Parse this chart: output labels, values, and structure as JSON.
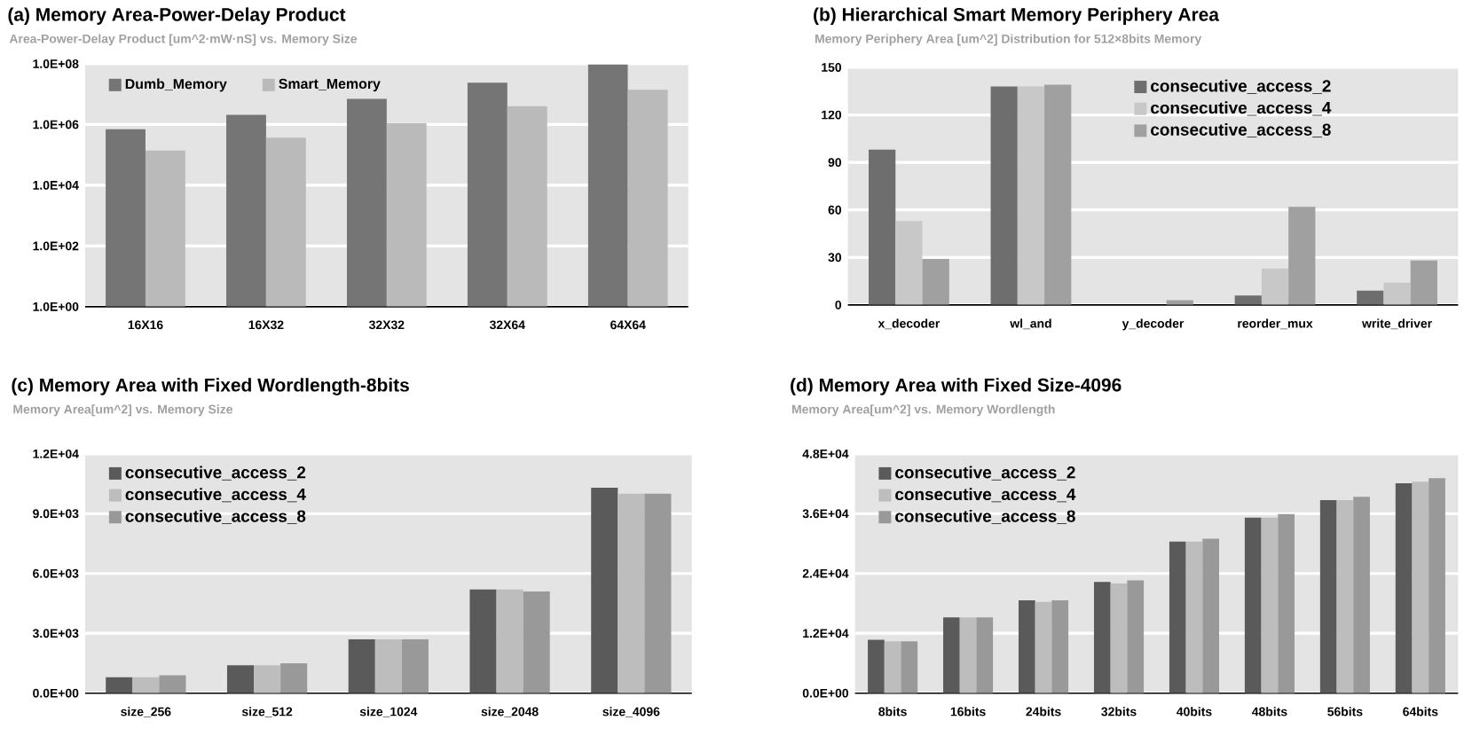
{
  "chart_data": [
    {
      "type": "bar",
      "title": "(a) Memory Area-Power-Delay Product",
      "subtitle": "Area-Power-Delay Product [um^2·mW·nS] vs. Memory Size",
      "categories": [
        "16X16",
        "16X32",
        "32X32",
        "32X64",
        "64X64"
      ],
      "series": [
        {
          "name": "Dumb_Memory",
          "color": "#757575",
          "values": [
            700000,
            2100000,
            7000000,
            24000000,
            95000000
          ]
        },
        {
          "name": "Smart_Memory",
          "color": "#bababa",
          "values": [
            140000,
            370000,
            1100000,
            4000000,
            14000000
          ]
        }
      ],
      "log": "y",
      "ylim": [
        1,
        100000000
      ],
      "yticks": [
        {
          "value": 1,
          "label": "1.0E+00"
        },
        {
          "value": 100,
          "label": "1.0E+02"
        },
        {
          "value": 10000,
          "label": "1.0E+04"
        },
        {
          "value": 1000000,
          "label": "1.0E+06"
        },
        {
          "value": 100000000,
          "label": "1.0E+08"
        }
      ],
      "grid": "y",
      "legend": "top"
    },
    {
      "type": "bar",
      "title": "(b) Hierarchical Smart Memory Periphery Area",
      "subtitle": "Memory  Periphery Area [um^2] Distribution for 512×8bits Memory",
      "categories": [
        "x_decoder",
        "wl_and",
        "y_decoder",
        "reorder_mux",
        "write_driver"
      ],
      "series": [
        {
          "name": "consecutive_access_2",
          "color": "#6e6e6e",
          "values": [
            98,
            138,
            0,
            6,
            9
          ]
        },
        {
          "name": "consecutive_access_4",
          "color": "#c8c8c8",
          "values": [
            53,
            138,
            0,
            23,
            14
          ]
        },
        {
          "name": "consecutive_access_8",
          "color": "#a0a0a0",
          "values": [
            29,
            139,
            3,
            62,
            28
          ]
        }
      ],
      "ylim": [
        0,
        150
      ],
      "yticks": [
        0,
        30,
        60,
        90,
        120,
        150
      ],
      "grid": "y",
      "legend": "top right"
    },
    {
      "type": "bar",
      "title": "(c) Memory Area with Fixed Wordlength-8bits",
      "subtitle": "Memory Area[um^2] vs. Memory Size",
      "categories": [
        "size_256",
        "size_512",
        "size_1024",
        "size_2048",
        "size_4096"
      ],
      "series": [
        {
          "name": "consecutive_access_2",
          "color": "#5a5a5a",
          "values": [
            800,
            1400,
            2700,
            5200,
            10300
          ]
        },
        {
          "name": "consecutive_access_4",
          "color": "#bdbdbd",
          "values": [
            800,
            1400,
            2700,
            5200,
            10000
          ]
        },
        {
          "name": "consecutive_access_8",
          "color": "#999999",
          "values": [
            900,
            1500,
            2700,
            5100,
            10000
          ]
        }
      ],
      "ylim": [
        0,
        12000
      ],
      "yticks": [
        {
          "value": 0,
          "label": "0.0E+00"
        },
        {
          "value": 3000,
          "label": "3.0E+03"
        },
        {
          "value": 6000,
          "label": "6.0E+03"
        },
        {
          "value": 9000,
          "label": "9.0E+03"
        },
        {
          "value": 12000,
          "label": "1.2E+04"
        }
      ],
      "grid": "y",
      "legend": "top left"
    },
    {
      "type": "bar",
      "title": "(d) Memory Area with Fixed Size-4096",
      "subtitle": "Memory Area[um^2] vs. Memory Wordlength",
      "categories": [
        "8bits",
        "16bits",
        "24bits",
        "32bits",
        "40bits",
        "48bits",
        "56bits",
        "64bits"
      ],
      "series": [
        {
          "name": "consecutive_access_2",
          "color": "#5a5a5a",
          "values": [
            10700,
            15200,
            18600,
            22300,
            30400,
            35200,
            38700,
            42100
          ]
        },
        {
          "name": "consecutive_access_4",
          "color": "#bdbdbd",
          "values": [
            10400,
            15200,
            18300,
            22000,
            30400,
            35200,
            38700,
            42400
          ]
        },
        {
          "name": "consecutive_access_8",
          "color": "#999999",
          "values": [
            10400,
            15200,
            18600,
            22600,
            31000,
            35900,
            39400,
            43100
          ]
        }
      ],
      "ylim": [
        0,
        48000
      ],
      "yticks": [
        {
          "value": 0,
          "label": "0.0E+00"
        },
        {
          "value": 12000,
          "label": "1.2E+04"
        },
        {
          "value": 24000,
          "label": "2.4E+04"
        },
        {
          "value": 36000,
          "label": "3.6E+04"
        },
        {
          "value": 48000,
          "label": "4.8E+04"
        }
      ],
      "grid": "y",
      "legend": "top left"
    }
  ]
}
